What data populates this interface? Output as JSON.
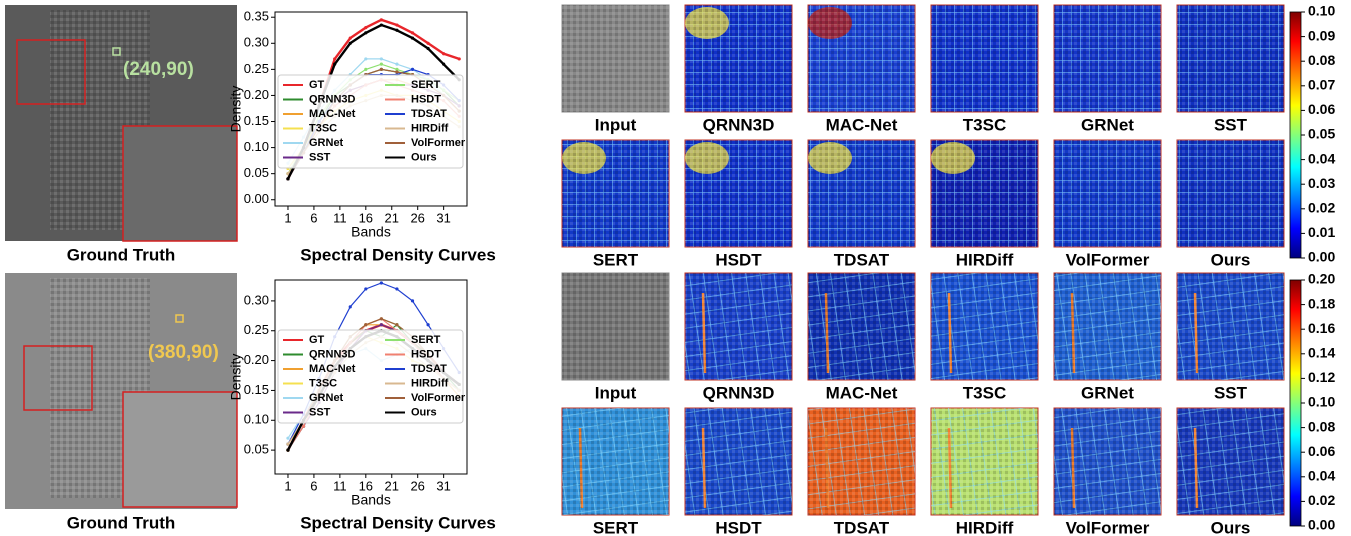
{
  "chart_data": [
    {
      "type": "line",
      "title": "Spectral Density Curves",
      "xlabel": "Bands",
      "ylabel": "Density",
      "x": [
        1,
        4,
        7,
        10,
        13,
        16,
        19,
        22,
        25,
        28,
        31,
        34
      ],
      "xlim": [
        -1.5,
        35.5
      ],
      "xticks": [
        1,
        6,
        11,
        16,
        21,
        26,
        31
      ],
      "ylim": [
        -0.012,
        0.36
      ],
      "yticks": [
        {
          "value": 0,
          "label": "0.00"
        },
        {
          "value": 0.05,
          "label": "0.05"
        },
        {
          "value": 0.1,
          "label": "0.10"
        },
        {
          "value": 0.15,
          "label": "0.15"
        },
        {
          "value": 0.2,
          "label": "0.20"
        },
        {
          "value": 0.25,
          "label": "0.25"
        },
        {
          "value": 0.3,
          "label": "0.30"
        },
        {
          "value": 0.35,
          "label": "0.35"
        }
      ],
      "series": [
        {
          "name": "GT",
          "color": "#e8262b",
          "values": [
            0.04,
            0.1,
            0.18,
            0.27,
            0.31,
            0.33,
            0.345,
            0.335,
            0.32,
            0.3,
            0.28,
            0.27
          ]
        },
        {
          "name": "QRNN3D",
          "color": "#2e8b2e",
          "values": [
            0.04,
            0.09,
            0.15,
            0.2,
            0.22,
            0.24,
            0.25,
            0.245,
            0.24,
            0.23,
            0.21,
            0.18
          ]
        },
        {
          "name": "MAC-Net",
          "color": "#f0a030",
          "values": [
            0.05,
            0.1,
            0.15,
            0.19,
            0.21,
            0.22,
            0.23,
            0.23,
            0.22,
            0.21,
            0.2,
            0.17
          ]
        },
        {
          "name": "T3SC",
          "color": "#f5e050",
          "values": [
            0.06,
            0.1,
            0.14,
            0.17,
            0.19,
            0.2,
            0.21,
            0.2,
            0.2,
            0.19,
            0.17,
            0.15
          ]
        },
        {
          "name": "GRNet",
          "color": "#9fd8f0",
          "values": [
            0.07,
            0.12,
            0.17,
            0.21,
            0.24,
            0.27,
            0.27,
            0.26,
            0.25,
            0.23,
            0.2,
            0.18
          ]
        },
        {
          "name": "SST",
          "color": "#6a2a8a",
          "values": [
            0.04,
            0.09,
            0.15,
            0.19,
            0.21,
            0.22,
            0.23,
            0.22,
            0.22,
            0.21,
            0.2,
            0.18
          ]
        },
        {
          "name": "SERT",
          "color": "#8ee070",
          "values": [
            0.05,
            0.1,
            0.16,
            0.2,
            0.23,
            0.25,
            0.26,
            0.25,
            0.24,
            0.23,
            0.21,
            0.19
          ]
        },
        {
          "name": "HSDT",
          "color": "#f08070",
          "values": [
            0.04,
            0.09,
            0.14,
            0.18,
            0.2,
            0.22,
            0.23,
            0.22,
            0.21,
            0.2,
            0.19,
            0.16
          ]
        },
        {
          "name": "TDSAT",
          "color": "#1f3fd0",
          "values": [
            0.04,
            0.09,
            0.15,
            0.19,
            0.22,
            0.24,
            0.24,
            0.24,
            0.25,
            0.24,
            0.22,
            0.19
          ]
        },
        {
          "name": "HIRDiff",
          "color": "#d8b890",
          "values": [
            0.05,
            0.09,
            0.13,
            0.16,
            0.18,
            0.19,
            0.2,
            0.2,
            0.19,
            0.18,
            0.16,
            0.14
          ]
        },
        {
          "name": "VolFormer",
          "color": "#a0603a",
          "values": [
            0.04,
            0.09,
            0.14,
            0.19,
            0.22,
            0.24,
            0.25,
            0.245,
            0.24,
            0.22,
            0.2,
            0.17
          ]
        },
        {
          "name": "Ours",
          "color": "#000000",
          "values": [
            0.04,
            0.1,
            0.18,
            0.26,
            0.3,
            0.32,
            0.335,
            0.325,
            0.31,
            0.29,
            0.26,
            0.23
          ]
        }
      ]
    },
    {
      "type": "line",
      "title": "Spectral Density Curves",
      "xlabel": "Bands",
      "ylabel": "Density",
      "x": [
        1,
        4,
        7,
        10,
        13,
        16,
        19,
        22,
        25,
        28,
        31,
        34
      ],
      "xlim": [
        -1.5,
        35.5
      ],
      "xticks": [
        1,
        6,
        11,
        16,
        21,
        26,
        31
      ],
      "ylim": [
        0.01,
        0.335
      ],
      "yticks": [
        {
          "value": 0.05,
          "label": "0.05"
        },
        {
          "value": 0.1,
          "label": "0.10"
        },
        {
          "value": 0.15,
          "label": "0.15"
        },
        {
          "value": 0.2,
          "label": "0.20"
        },
        {
          "value": 0.25,
          "label": "0.25"
        },
        {
          "value": 0.3,
          "label": "0.30"
        }
      ],
      "series": [
        {
          "name": "GT",
          "color": "#e8262b",
          "values": [
            0.05,
            0.1,
            0.15,
            0.2,
            0.23,
            0.25,
            0.26,
            0.25,
            0.23,
            0.21,
            0.18,
            0.16
          ]
        },
        {
          "name": "QRNN3D",
          "color": "#2e8b2e",
          "values": [
            0.05,
            0.09,
            0.14,
            0.19,
            0.23,
            0.25,
            0.24,
            0.26,
            0.23,
            0.21,
            0.18,
            0.15
          ]
        },
        {
          "name": "MAC-Net",
          "color": "#f0a030",
          "values": [
            0.05,
            0.1,
            0.15,
            0.2,
            0.24,
            0.26,
            0.26,
            0.25,
            0.23,
            0.2,
            0.17,
            0.14
          ]
        },
        {
          "name": "T3SC",
          "color": "#f5e050",
          "values": [
            0.06,
            0.1,
            0.14,
            0.19,
            0.22,
            0.24,
            0.23,
            0.22,
            0.2,
            0.19,
            0.17,
            0.15
          ]
        },
        {
          "name": "GRNet",
          "color": "#9fd8f0",
          "values": [
            0.07,
            0.11,
            0.15,
            0.18,
            0.21,
            0.22,
            0.2,
            0.21,
            0.22,
            0.2,
            0.18,
            0.16
          ]
        },
        {
          "name": "SST",
          "color": "#6a2a8a",
          "values": [
            0.05,
            0.09,
            0.13,
            0.18,
            0.22,
            0.25,
            0.26,
            0.25,
            0.23,
            0.2,
            0.17,
            0.15
          ]
        },
        {
          "name": "SERT",
          "color": "#8ee070",
          "values": [
            0.05,
            0.1,
            0.15,
            0.2,
            0.24,
            0.26,
            0.27,
            0.26,
            0.24,
            0.21,
            0.18,
            0.16
          ]
        },
        {
          "name": "HSDT",
          "color": "#f08070",
          "values": [
            0.05,
            0.09,
            0.14,
            0.19,
            0.23,
            0.26,
            0.27,
            0.25,
            0.23,
            0.2,
            0.17,
            0.15
          ]
        },
        {
          "name": "TDSAT",
          "color": "#1f3fd0",
          "values": [
            0.06,
            0.11,
            0.17,
            0.24,
            0.29,
            0.32,
            0.33,
            0.32,
            0.3,
            0.26,
            0.22,
            0.18
          ]
        },
        {
          "name": "HIRDiff",
          "color": "#d8b890",
          "values": [
            0.06,
            0.1,
            0.14,
            0.18,
            0.21,
            0.23,
            0.24,
            0.23,
            0.21,
            0.19,
            0.17,
            0.15
          ]
        },
        {
          "name": "VolFormer",
          "color": "#a0603a",
          "values": [
            0.05,
            0.1,
            0.15,
            0.2,
            0.24,
            0.26,
            0.27,
            0.26,
            0.24,
            0.21,
            0.18,
            0.16
          ]
        },
        {
          "name": "Ours",
          "color": "#000000",
          "values": [
            0.05,
            0.1,
            0.14,
            0.19,
            0.22,
            0.24,
            0.25,
            0.24,
            0.22,
            0.2,
            0.18,
            0.16
          ]
        }
      ]
    }
  ],
  "panels": [
    {
      "gt_label": "Ground Truth",
      "coordinate": "(240,90)",
      "tiles": [
        "Input",
        "QRNN3D",
        "MAC-Net",
        "T3SC",
        "GRNet",
        "SST",
        "SERT",
        "HSDT",
        "TDSAT",
        "HIRDiff",
        "VolFormer",
        "Ours"
      ],
      "colorbar": {
        "ylim": [
          0,
          0.1
        ],
        "yticks": [
          {
            "value": 0,
            "label": "0.00"
          },
          {
            "value": 0.01,
            "label": "0.01"
          },
          {
            "value": 0.02,
            "label": "0.02"
          },
          {
            "value": 0.03,
            "label": "0.03"
          },
          {
            "value": 0.04,
            "label": "0.04"
          },
          {
            "value": 0.05,
            "label": "0.05"
          },
          {
            "value": 0.06,
            "label": "0.06"
          },
          {
            "value": 0.07,
            "label": "0.07"
          },
          {
            "value": 0.08,
            "label": "0.08"
          },
          {
            "value": 0.09,
            "label": "0.09"
          },
          {
            "value": 0.1,
            "label": "0.10"
          }
        ]
      }
    },
    {
      "gt_label": "Ground Truth",
      "coordinate": "(380,90)",
      "tiles": [
        "Input",
        "QRNN3D",
        "MAC-Net",
        "T3SC",
        "GRNet",
        "SST",
        "SERT",
        "HSDT",
        "TDSAT",
        "HIRDiff",
        "VolFormer",
        "Ours"
      ],
      "colorbar": {
        "ylim": [
          0,
          0.2
        ],
        "yticks": [
          {
            "value": 0,
            "label": "0.00"
          },
          {
            "value": 0.02,
            "label": "0.02"
          },
          {
            "value": 0.04,
            "label": "0.04"
          },
          {
            "value": 0.06,
            "label": "0.06"
          },
          {
            "value": 0.08,
            "label": "0.08"
          },
          {
            "value": 0.1,
            "label": "0.10"
          },
          {
            "value": 0.12,
            "label": "0.12"
          },
          {
            "value": 0.14,
            "label": "0.14"
          },
          {
            "value": 0.16,
            "label": "0.16"
          },
          {
            "value": 0.18,
            "label": "0.18"
          },
          {
            "value": 0.2,
            "label": "0.20"
          }
        ]
      }
    }
  ]
}
